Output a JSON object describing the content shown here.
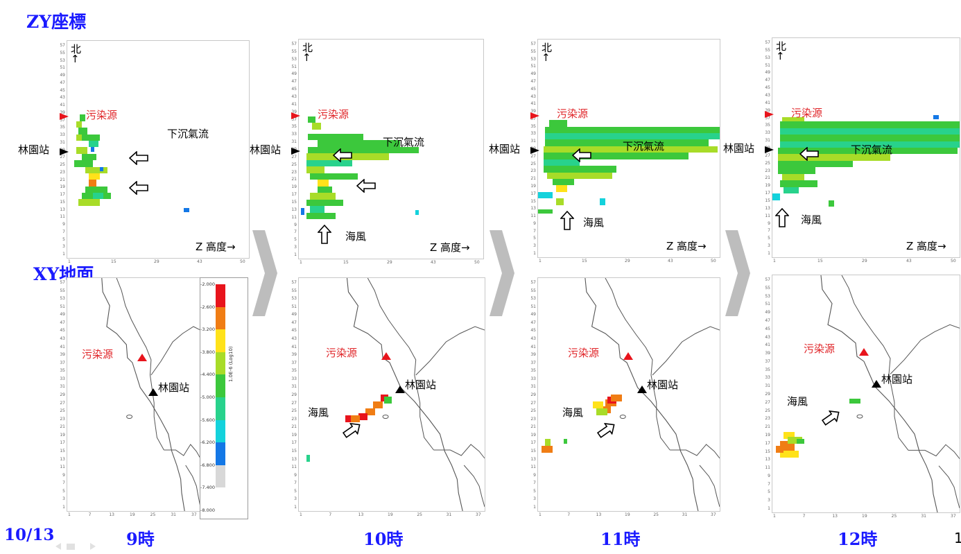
{
  "labels": {
    "zy_title": "ZY座標",
    "xy_title": "XY地面",
    "date": "10/13",
    "times": [
      "9時",
      "10時",
      "11時",
      "12時"
    ],
    "page_number": "1"
  },
  "annotations": {
    "north": "北",
    "north_arrow": "↑",
    "pollution_source": "污染源",
    "station": "林園站",
    "downdraft": "下沉氣流",
    "sea_breeze": "海風",
    "z_axis": "Z 高度→"
  },
  "zy_axis": {
    "y_ticks": [
      "57",
      "55",
      "53",
      "51",
      "49",
      "47",
      "45",
      "43",
      "41",
      "39",
      "37",
      "35",
      "33",
      "31",
      "29",
      "27",
      "25",
      "23",
      "21",
      "19",
      "17",
      "15",
      "13",
      "11",
      "9",
      "7",
      "5",
      "3",
      "1"
    ],
    "x_ticks": [
      "1",
      "15",
      "29",
      "43",
      "50"
    ]
  },
  "xy_axis": {
    "y_ticks": [
      "57",
      "55",
      "53",
      "51",
      "49",
      "47",
      "45",
      "43",
      "41",
      "39",
      "37",
      "35",
      "33",
      "31",
      "29",
      "27",
      "25",
      "23",
      "21",
      "19",
      "17",
      "15",
      "13",
      "11",
      "9",
      "7",
      "5",
      "3",
      "1"
    ],
    "x_ticks": [
      "1",
      "7",
      "13",
      "19",
      "25",
      "31",
      "37"
    ]
  },
  "legend": {
    "title": "1.0E-6 (Log10)",
    "ticks": [
      "-2.000",
      "-2.600",
      "-3.200",
      "-3.800",
      "-4.400",
      "-5.000",
      "-5.600",
      "-6.200",
      "-6.800",
      "-7.400",
      "-8.000"
    ],
    "colors": [
      "#e8141c",
      "#f07d14",
      "#ffe21a",
      "#a8dc28",
      "#3cc83c",
      "#28d28c",
      "#14d2dc",
      "#1478e6",
      "#d8d8d8"
    ]
  },
  "colors": {
    "title_blue": "#1a1aff",
    "source_red": "#e0262a"
  }
}
